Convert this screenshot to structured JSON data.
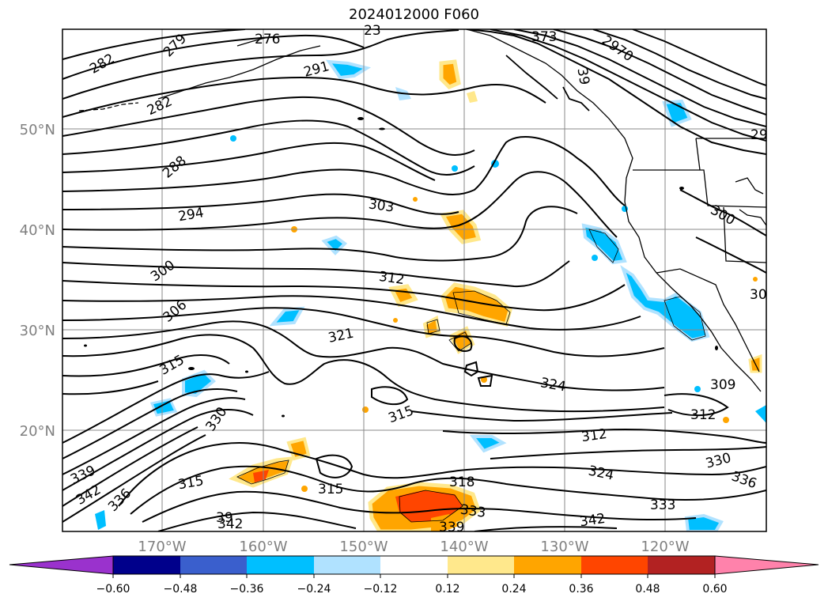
{
  "title": "2024012000 F060",
  "map": {
    "lat_labels": [
      "50°N",
      "40°N",
      "30°N",
      "20°N"
    ],
    "lon_labels": [
      "170°W",
      "160°W",
      "150°W",
      "140°W",
      "130°W",
      "120°W"
    ],
    "contour_labels": [
      "276",
      "279",
      "282",
      "282",
      "291",
      "288",
      "294",
      "303",
      "300",
      "306",
      "312",
      "321",
      "315",
      "324",
      "315",
      "330",
      "315",
      "315",
      "318",
      "333",
      "339",
      "342",
      "339",
      "342",
      "312",
      "324",
      "342",
      "330",
      "336",
      "309",
      "312",
      "300",
      "30",
      "29",
      "2970",
      "333",
      "336",
      "39",
      "373",
      "23",
      "39"
    ],
    "colors": {
      "land": "#000000",
      "contour": "#000000",
      "grid": "#888888"
    }
  },
  "colorbar": {
    "ticks": [
      "−0.60",
      "−0.48",
      "−0.36",
      "−0.24",
      "−0.12",
      "0.12",
      "0.24",
      "0.36",
      "0.48",
      "0.60"
    ],
    "colors": [
      "#9a32cd",
      "#00008b",
      "#3a5fcd",
      "#00bfff",
      "#b0e2ff",
      "#ffffff",
      "#ffe88c",
      "#ffa500",
      "#ff4500",
      "#b22222",
      "#ff82ab"
    ]
  }
}
